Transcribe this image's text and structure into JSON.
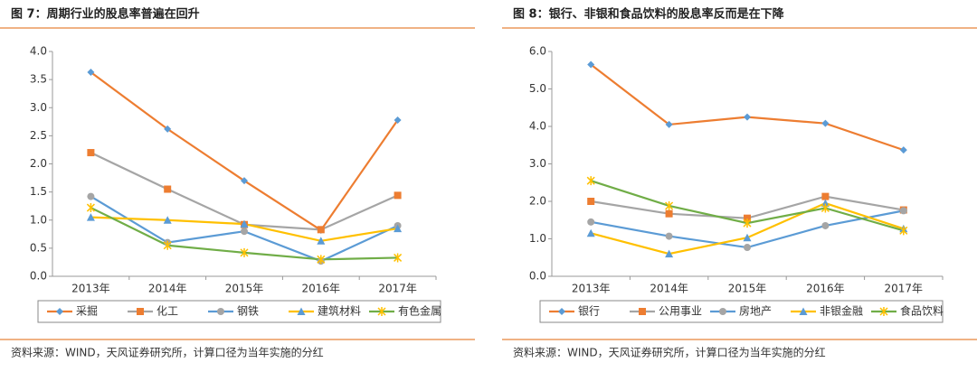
{
  "chart_data": [
    {
      "type": "line",
      "title": "图 7：周期行业的股息率普遍在回升",
      "categories": [
        "2013年",
        "2014年",
        "2015年",
        "2016年",
        "2017年"
      ],
      "ylim": [
        0,
        4
      ],
      "yticks": [
        {
          "value": 0,
          "label": "0.0"
        },
        0.5,
        {
          "value": 1,
          "label": "1.0"
        },
        1.5,
        {
          "value": 2,
          "label": "2.0"
        },
        2.5,
        {
          "value": 3,
          "label": "3.0"
        },
        3.5,
        {
          "value": 4,
          "label": "4.0"
        }
      ],
      "grid": false,
      "series": [
        {
          "name": "采掘",
          "color": "#ed7d31",
          "marker_color": "#5b9bd5",
          "marker": "diamond",
          "values": [
            3.63,
            2.62,
            1.7,
            0.82,
            2.78
          ]
        },
        {
          "name": "化工",
          "color": "#a5a5a5",
          "marker_color": "#ed7d31",
          "marker": "square",
          "values": [
            2.2,
            1.55,
            0.92,
            0.83,
            1.44
          ]
        },
        {
          "name": "钢铁",
          "color": "#5b9bd5",
          "marker_color": "#a5a5a5",
          "marker": "circle",
          "values": [
            1.42,
            0.6,
            0.8,
            0.27,
            0.9
          ]
        },
        {
          "name": "建筑材料",
          "color": "#ffc000",
          "marker_color": "#5b9bd5",
          "marker": "triangle",
          "values": [
            1.05,
            1.0,
            0.93,
            0.63,
            0.85
          ]
        },
        {
          "name": "有色金属",
          "color": "#70ad47",
          "marker_color": "#ffc000",
          "marker": "star",
          "values": [
            1.22,
            0.55,
            0.42,
            0.3,
            0.33
          ]
        }
      ],
      "source": "资料来源：WIND，天风证券研究所，计算口径为当年实施的分红"
    },
    {
      "type": "line",
      "title": "图 8：银行、非银和食品饮料的股息率反而是在下降",
      "categories": [
        "2013年",
        "2014年",
        "2015年",
        "2016年",
        "2017年"
      ],
      "ylim": [
        0,
        6
      ],
      "yticks": [
        {
          "value": 0,
          "label": "0.0"
        },
        {
          "value": 1,
          "label": "1.0"
        },
        {
          "value": 2,
          "label": "2.0"
        },
        {
          "value": 3,
          "label": "3.0"
        },
        {
          "value": 4,
          "label": "4.0"
        },
        {
          "value": 5,
          "label": "5.0"
        },
        {
          "value": 6,
          "label": "6.0"
        }
      ],
      "grid": false,
      "series": [
        {
          "name": "银行",
          "color": "#ed7d31",
          "marker_color": "#5b9bd5",
          "marker": "diamond",
          "values": [
            5.65,
            4.05,
            4.25,
            4.08,
            3.37
          ]
        },
        {
          "name": "公用事业",
          "color": "#a5a5a5",
          "marker_color": "#ed7d31",
          "marker": "square",
          "values": [
            2.0,
            1.67,
            1.55,
            2.13,
            1.77
          ]
        },
        {
          "name": "房地产",
          "color": "#5b9bd5",
          "marker_color": "#a5a5a5",
          "marker": "circle",
          "values": [
            1.45,
            1.07,
            0.77,
            1.35,
            1.75
          ]
        },
        {
          "name": "非银金融",
          "color": "#ffc000",
          "marker_color": "#5b9bd5",
          "marker": "triangle",
          "values": [
            1.15,
            0.6,
            1.03,
            1.95,
            1.27
          ]
        },
        {
          "name": "食品饮料",
          "color": "#70ad47",
          "marker_color": "#ffc000",
          "marker": "star",
          "values": [
            2.55,
            1.88,
            1.42,
            1.82,
            1.22
          ]
        }
      ],
      "source": "资料来源：WIND，天风证券研究所，计算口径为当年实施的分红"
    }
  ]
}
